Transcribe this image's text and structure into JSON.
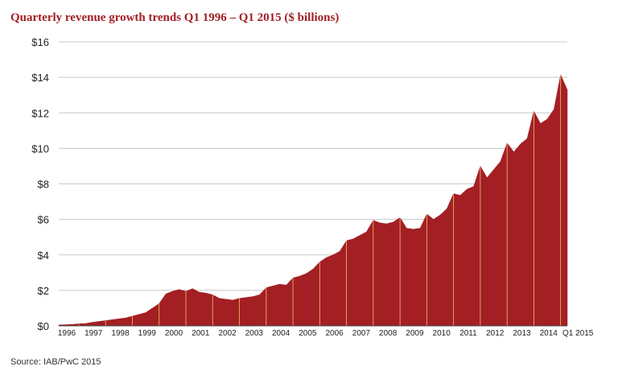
{
  "header": {
    "title": "Quarterly revenue growth trends Q1 1996 – Q1 2015 ($ billions)"
  },
  "footer": {
    "source": "Source: IAB/PwC 2015"
  },
  "colors": {
    "fill": "#a31f24",
    "separator": "#f2c26a",
    "grid": "#c8c8c8",
    "title": "#a31f24"
  },
  "chart_data": {
    "type": "area",
    "title": "Quarterly revenue growth trends Q1 1996 – Q1 2015 ($ billions)",
    "ylabel": "",
    "xlabel": "",
    "ylim": [
      0,
      16
    ],
    "y_ticks": [
      0,
      2,
      4,
      6,
      8,
      10,
      12,
      14,
      16
    ],
    "y_tick_labels": [
      "$0",
      "$2",
      "$4",
      "$6",
      "$8",
      "$10",
      "$12",
      "$14",
      "$16"
    ],
    "x_tick_labels": [
      "1996",
      "1997",
      "1998",
      "1999",
      "2000",
      "2001",
      "2002",
      "2003",
      "2004",
      "2005",
      "2006",
      "2007",
      "2008",
      "2009",
      "2010",
      "2011",
      "2012",
      "2013",
      "2014",
      "Q1 2015"
    ],
    "grid": true,
    "series": [
      {
        "values": [
          0.05,
          0.07,
          0.08,
          0.12,
          0.13,
          0.2,
          0.25,
          0.3,
          0.35,
          0.4,
          0.45,
          0.55,
          0.65,
          0.75,
          1.0,
          1.25,
          1.8,
          1.95,
          2.05,
          1.95,
          2.1,
          1.9,
          1.85,
          1.75,
          1.55,
          1.5,
          1.45,
          1.55,
          1.6,
          1.65,
          1.75,
          2.15,
          2.25,
          2.35,
          2.3,
          2.7,
          2.8,
          2.95,
          3.2,
          3.6,
          3.85,
          4.0,
          4.2,
          4.8,
          4.9,
          5.1,
          5.3,
          5.95,
          5.8,
          5.75,
          5.85,
          6.1,
          5.5,
          5.45,
          5.5,
          6.3,
          6.0,
          6.25,
          6.6,
          7.45,
          7.35,
          7.7,
          7.85,
          9.0,
          8.35,
          8.8,
          9.25,
          10.3,
          9.8,
          10.25,
          10.55,
          12.1,
          11.4,
          11.65,
          12.2,
          14.15,
          13.3
        ]
      }
    ]
  }
}
